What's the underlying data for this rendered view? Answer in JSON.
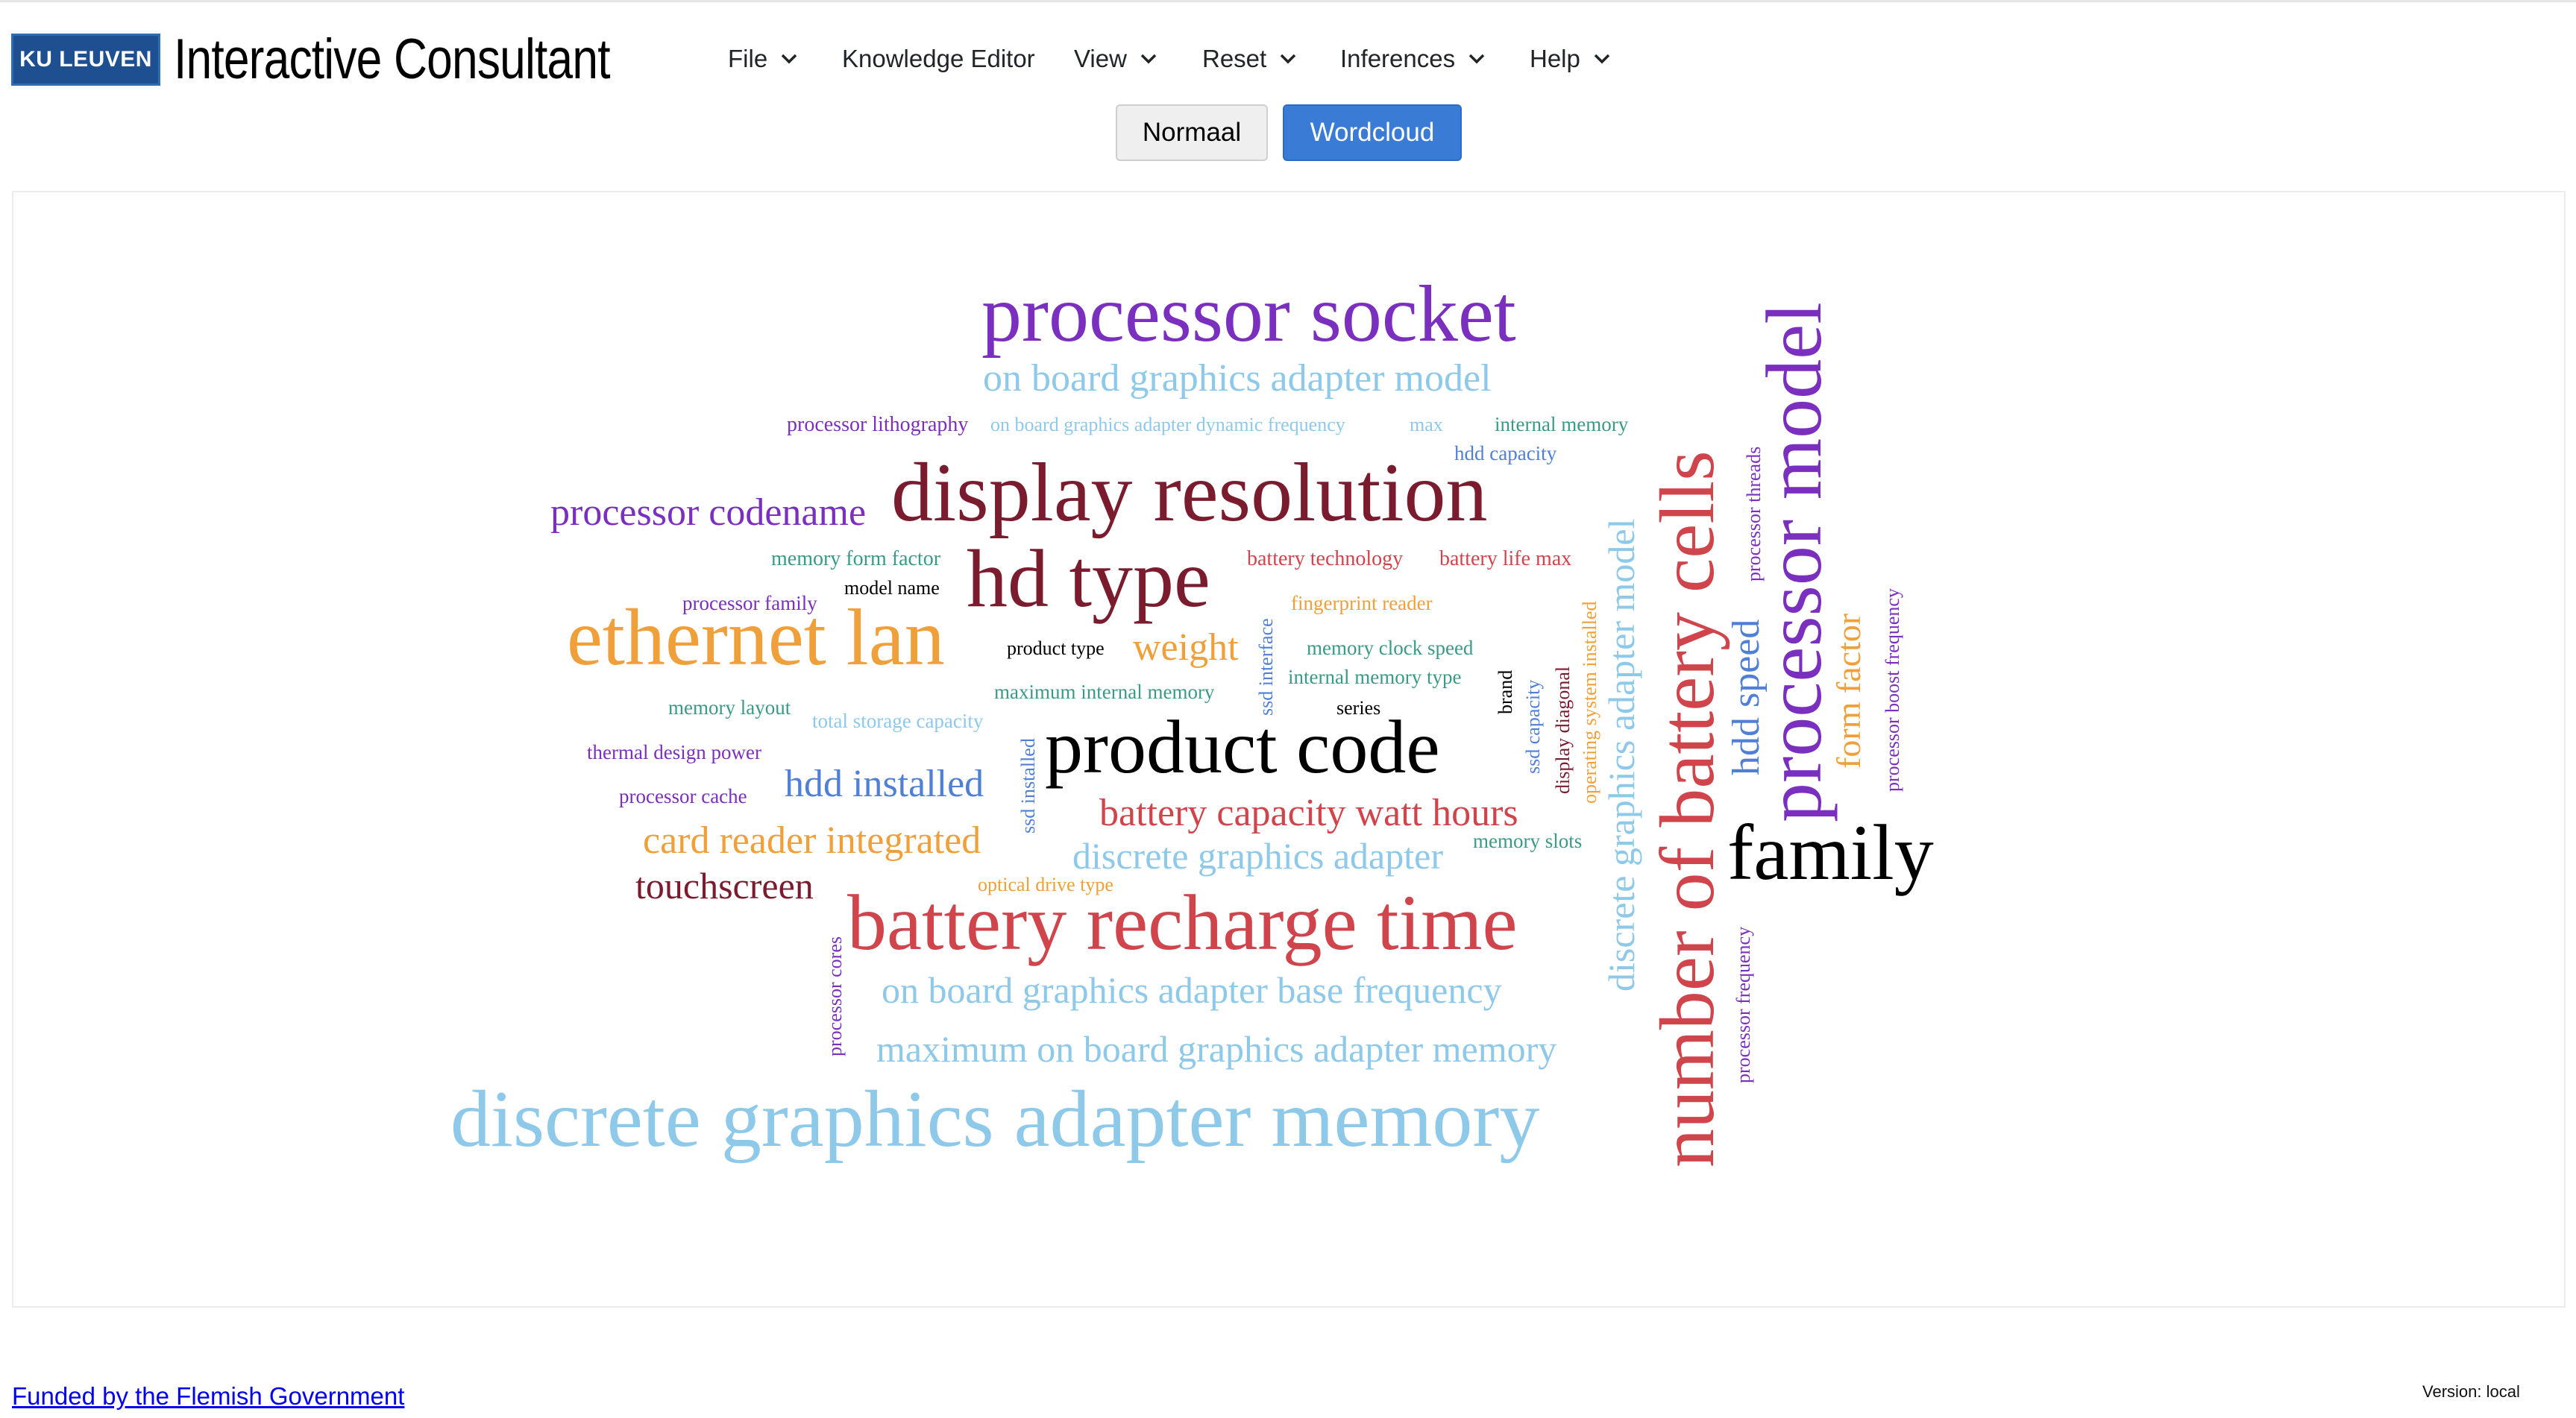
{
  "header": {
    "logo_text": "KU LEUVEN",
    "title": "Interactive Consultant"
  },
  "menu": {
    "items": [
      {
        "label": "File",
        "dropdown": true
      },
      {
        "label": "Knowledge Editor",
        "dropdown": false
      },
      {
        "label": "View",
        "dropdown": true
      },
      {
        "label": "Reset",
        "dropdown": true
      },
      {
        "label": "Inferences",
        "dropdown": true
      },
      {
        "label": "Help",
        "dropdown": true
      }
    ]
  },
  "view_toggle": {
    "normaal_label": "Normaal",
    "wordcloud_label": "Wordcloud",
    "active": "Wordcloud"
  },
  "colors": {
    "accent": "#3a7bd5",
    "purple": "#7b2fbe",
    "light_blue": "#8ec9ea",
    "dark_red": "#7a1b2e",
    "red": "#d0454c",
    "orange": "#f0a03a",
    "teal": "#3a9a86",
    "blue": "#4f7fd6",
    "black": "#000000"
  },
  "wordcloud": {
    "words": [
      {
        "text": "processor socket",
        "color": "purple"
      },
      {
        "text": "on board graphics adapter model",
        "color": "light_blue"
      },
      {
        "text": "processor lithography",
        "color": "purple"
      },
      {
        "text": "on board graphics adapter dynamic frequency",
        "color": "light_blue"
      },
      {
        "text": "max",
        "color": "light_blue"
      },
      {
        "text": "internal memory",
        "color": "teal"
      },
      {
        "text": "hdd capacity",
        "color": "blue"
      },
      {
        "text": "processor codename",
        "color": "purple"
      },
      {
        "text": "display resolution",
        "color": "dark_red"
      },
      {
        "text": "memory form factor",
        "color": "teal"
      },
      {
        "text": "battery technology",
        "color": "red"
      },
      {
        "text": "battery life max",
        "color": "red"
      },
      {
        "text": "processor family",
        "color": "purple"
      },
      {
        "text": "model name",
        "color": "black"
      },
      {
        "text": "hd type",
        "color": "dark_red"
      },
      {
        "text": "fingerprint reader",
        "color": "orange"
      },
      {
        "text": "ethernet lan",
        "color": "orange"
      },
      {
        "text": "product type",
        "color": "black"
      },
      {
        "text": "weight",
        "color": "orange"
      },
      {
        "text": "memory clock speed",
        "color": "teal"
      },
      {
        "text": "maximum internal memory",
        "color": "teal"
      },
      {
        "text": "internal memory type",
        "color": "teal"
      },
      {
        "text": "memory layout",
        "color": "teal"
      },
      {
        "text": "total storage capacity",
        "color": "light_blue"
      },
      {
        "text": "series",
        "color": "black"
      },
      {
        "text": "thermal design power",
        "color": "purple"
      },
      {
        "text": "product code",
        "color": "black"
      },
      {
        "text": "hdd installed",
        "color": "blue"
      },
      {
        "text": "processor cache",
        "color": "purple"
      },
      {
        "text": "battery capacity watt hours",
        "color": "red"
      },
      {
        "text": "card reader integrated",
        "color": "orange"
      },
      {
        "text": "discrete graphics adapter",
        "color": "light_blue"
      },
      {
        "text": "memory slots",
        "color": "teal"
      },
      {
        "text": "touchscreen",
        "color": "dark_red"
      },
      {
        "text": "optical drive type",
        "color": "orange"
      },
      {
        "text": "battery recharge time",
        "color": "red"
      },
      {
        "text": "on board graphics adapter base frequency",
        "color": "light_blue"
      },
      {
        "text": "maximum on board graphics adapter memory",
        "color": "light_blue"
      },
      {
        "text": "discrete graphics adapter memory",
        "color": "light_blue"
      },
      {
        "text": "family",
        "color": "black"
      },
      {
        "text": "ssd interface",
        "color": "blue"
      },
      {
        "text": "ssd installed",
        "color": "blue"
      },
      {
        "text": "processor cores",
        "color": "purple"
      },
      {
        "text": "brand",
        "color": "black"
      },
      {
        "text": "ssd capacity",
        "color": "blue"
      },
      {
        "text": "display diagonal",
        "color": "dark_red"
      },
      {
        "text": "operating system installed",
        "color": "orange"
      },
      {
        "text": "discrete graphics adapter model",
        "color": "light_blue"
      },
      {
        "text": "number of battery cells",
        "color": "red"
      },
      {
        "text": "hdd speed",
        "color": "blue"
      },
      {
        "text": "processor threads",
        "color": "purple"
      },
      {
        "text": "processor model",
        "color": "purple"
      },
      {
        "text": "form factor",
        "color": "orange"
      },
      {
        "text": "processor boost frequency",
        "color": "purple"
      },
      {
        "text": "processor frequency",
        "color": "purple"
      }
    ]
  },
  "footer": {
    "funding_link": "Funded by the Flemish Government",
    "version": "Version: local"
  }
}
